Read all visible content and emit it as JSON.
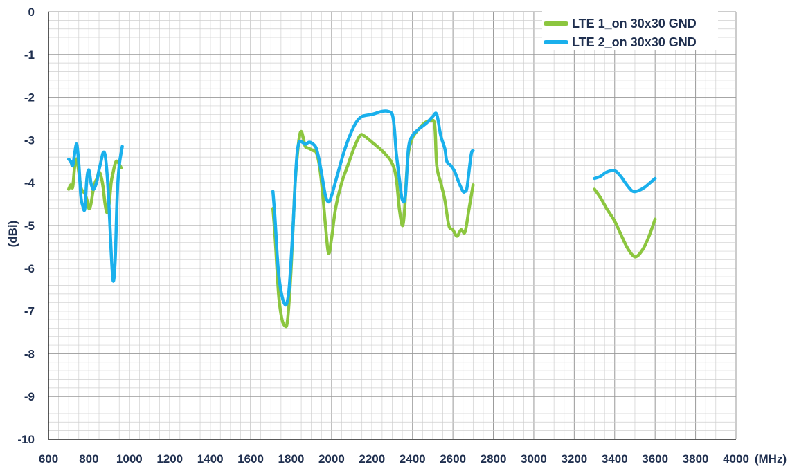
{
  "chart_data": {
    "type": "line",
    "title": "",
    "xlabel": "(MHz)",
    "ylabel": "(dBi)",
    "xlim": [
      600,
      4000
    ],
    "ylim": [
      -10,
      0
    ],
    "xticks": [
      600,
      800,
      1000,
      1200,
      1400,
      1600,
      1800,
      2000,
      2200,
      2400,
      2600,
      2800,
      3000,
      3200,
      3400,
      3600,
      3800,
      4000
    ],
    "yticks": [
      0,
      -1,
      -2,
      -3,
      -4,
      -5,
      -6,
      -7,
      -8,
      -9,
      -10
    ],
    "grid": true,
    "legend_position": "top-right",
    "series": [
      {
        "name": "LTE 1_on 30x30 GND",
        "color": "#8cc63f",
        "segments": [
          [
            [
              700,
              -4.15
            ],
            [
              710,
              -4.05
            ],
            [
              720,
              -4.1
            ],
            [
              730,
              -3.6
            ],
            [
              740,
              -3.45
            ],
            [
              750,
              -3.75
            ],
            [
              760,
              -4.1
            ],
            [
              770,
              -4.2
            ],
            [
              780,
              -4.25
            ],
            [
              790,
              -4.4
            ],
            [
              800,
              -4.6
            ],
            [
              810,
              -4.5
            ],
            [
              820,
              -4.2
            ],
            [
              830,
              -4.0
            ],
            [
              840,
              -3.9
            ],
            [
              850,
              -3.75
            ],
            [
              860,
              -3.85
            ],
            [
              870,
              -4.1
            ],
            [
              880,
              -4.5
            ],
            [
              890,
              -4.7
            ],
            [
              900,
              -4.5
            ],
            [
              910,
              -4.0
            ],
            [
              920,
              -3.75
            ],
            [
              930,
              -3.55
            ],
            [
              940,
              -3.5
            ],
            [
              960,
              -3.65
            ]
          ],
          [
            [
              1710,
              -4.6
            ],
            [
              1720,
              -5.2
            ],
            [
              1730,
              -6.0
            ],
            [
              1740,
              -6.7
            ],
            [
              1755,
              -7.2
            ],
            [
              1770,
              -7.35
            ],
            [
              1780,
              -7.3
            ],
            [
              1790,
              -6.8
            ],
            [
              1800,
              -6.0
            ],
            [
              1810,
              -5.0
            ],
            [
              1820,
              -4.0
            ],
            [
              1830,
              -3.4
            ],
            [
              1840,
              -2.95
            ],
            [
              1850,
              -2.8
            ],
            [
              1860,
              -2.95
            ],
            [
              1870,
              -3.15
            ],
            [
              1890,
              -3.2
            ],
            [
              1910,
              -3.25
            ],
            [
              1925,
              -3.3
            ],
            [
              1940,
              -3.6
            ],
            [
              1955,
              -4.2
            ],
            [
              1970,
              -5.0
            ],
            [
              1985,
              -5.65
            ],
            [
              2000,
              -5.3
            ],
            [
              2020,
              -4.6
            ],
            [
              2050,
              -4.0
            ],
            [
              2080,
              -3.6
            ],
            [
              2110,
              -3.2
            ],
            [
              2140,
              -2.9
            ],
            [
              2160,
              -2.9
            ],
            [
              2200,
              -3.05
            ],
            [
              2260,
              -3.3
            ],
            [
              2300,
              -3.55
            ],
            [
              2320,
              -3.9
            ],
            [
              2335,
              -4.6
            ],
            [
              2350,
              -5.0
            ],
            [
              2360,
              -4.7
            ],
            [
              2370,
              -3.9
            ],
            [
              2380,
              -3.3
            ],
            [
              2400,
              -2.95
            ],
            [
              2430,
              -2.75
            ],
            [
              2460,
              -2.6
            ],
            [
              2490,
              -2.55
            ],
            [
              2510,
              -2.65
            ],
            [
              2520,
              -3.6
            ],
            [
              2540,
              -4.0
            ],
            [
              2560,
              -4.4
            ],
            [
              2580,
              -5.0
            ],
            [
              2600,
              -5.1
            ],
            [
              2620,
              -5.25
            ],
            [
              2640,
              -5.1
            ],
            [
              2660,
              -5.15
            ],
            [
              2680,
              -4.6
            ],
            [
              2700,
              -4.05
            ]
          ],
          [
            [
              3300,
              -4.15
            ],
            [
              3330,
              -4.35
            ],
            [
              3360,
              -4.6
            ],
            [
              3400,
              -4.9
            ],
            [
              3430,
              -5.2
            ],
            [
              3460,
              -5.5
            ],
            [
              3490,
              -5.7
            ],
            [
              3510,
              -5.72
            ],
            [
              3540,
              -5.55
            ],
            [
              3570,
              -5.25
            ],
            [
              3600,
              -4.85
            ]
          ]
        ]
      },
      {
        "name": "LTE 2_on 30x30 GND",
        "color": "#1ab0ec",
        "segments": [
          [
            [
              700,
              -3.45
            ],
            [
              710,
              -3.5
            ],
            [
              720,
              -3.6
            ],
            [
              730,
              -3.3
            ],
            [
              740,
              -3.1
            ],
            [
              750,
              -3.55
            ],
            [
              760,
              -4.3
            ],
            [
              770,
              -4.55
            ],
            [
              780,
              -4.6
            ],
            [
              790,
              -3.9
            ],
            [
              800,
              -3.7
            ],
            [
              810,
              -4.0
            ],
            [
              820,
              -4.15
            ],
            [
              830,
              -4.1
            ],
            [
              840,
              -3.95
            ],
            [
              850,
              -3.7
            ],
            [
              860,
              -3.5
            ],
            [
              870,
              -3.3
            ],
            [
              880,
              -3.35
            ],
            [
              890,
              -3.8
            ],
            [
              900,
              -4.6
            ],
            [
              910,
              -5.6
            ],
            [
              920,
              -6.3
            ],
            [
              930,
              -5.8
            ],
            [
              940,
              -4.3
            ],
            [
              950,
              -3.6
            ],
            [
              965,
              -3.15
            ]
          ],
          [
            [
              1710,
              -4.2
            ],
            [
              1720,
              -4.8
            ],
            [
              1730,
              -5.6
            ],
            [
              1740,
              -6.2
            ],
            [
              1755,
              -6.65
            ],
            [
              1770,
              -6.85
            ],
            [
              1780,
              -6.8
            ],
            [
              1790,
              -6.5
            ],
            [
              1800,
              -5.8
            ],
            [
              1810,
              -5.0
            ],
            [
              1820,
              -4.0
            ],
            [
              1830,
              -3.3
            ],
            [
              1840,
              -3.05
            ],
            [
              1855,
              -3.05
            ],
            [
              1870,
              -3.1
            ],
            [
              1890,
              -3.05
            ],
            [
              1910,
              -3.1
            ],
            [
              1925,
              -3.2
            ],
            [
              1940,
              -3.5
            ],
            [
              1955,
              -3.9
            ],
            [
              1970,
              -4.3
            ],
            [
              1985,
              -4.45
            ],
            [
              2000,
              -4.3
            ],
            [
              2030,
              -3.8
            ],
            [
              2060,
              -3.3
            ],
            [
              2090,
              -2.9
            ],
            [
              2120,
              -2.6
            ],
            [
              2150,
              -2.45
            ],
            [
              2200,
              -2.4
            ],
            [
              2250,
              -2.33
            ],
            [
              2280,
              -2.33
            ],
            [
              2300,
              -2.4
            ],
            [
              2310,
              -2.7
            ],
            [
              2320,
              -3.3
            ],
            [
              2335,
              -3.9
            ],
            [
              2350,
              -4.4
            ],
            [
              2365,
              -4.3
            ],
            [
              2380,
              -3.2
            ],
            [
              2400,
              -2.9
            ],
            [
              2430,
              -2.75
            ],
            [
              2470,
              -2.6
            ],
            [
              2500,
              -2.45
            ],
            [
              2520,
              -2.4
            ],
            [
              2540,
              -2.9
            ],
            [
              2560,
              -3.2
            ],
            [
              2570,
              -3.5
            ],
            [
              2590,
              -3.6
            ],
            [
              2610,
              -3.75
            ],
            [
              2630,
              -4.0
            ],
            [
              2650,
              -4.2
            ],
            [
              2660,
              -4.2
            ],
            [
              2670,
              -4.1
            ],
            [
              2690,
              -3.35
            ],
            [
              2700,
              -3.25
            ]
          ],
          [
            [
              3300,
              -3.9
            ],
            [
              3330,
              -3.85
            ],
            [
              3360,
              -3.75
            ],
            [
              3400,
              -3.72
            ],
            [
              3430,
              -3.85
            ],
            [
              3460,
              -4.05
            ],
            [
              3490,
              -4.2
            ],
            [
              3520,
              -4.18
            ],
            [
              3550,
              -4.1
            ],
            [
              3580,
              -3.98
            ],
            [
              3600,
              -3.9
            ]
          ]
        ]
      }
    ]
  }
}
